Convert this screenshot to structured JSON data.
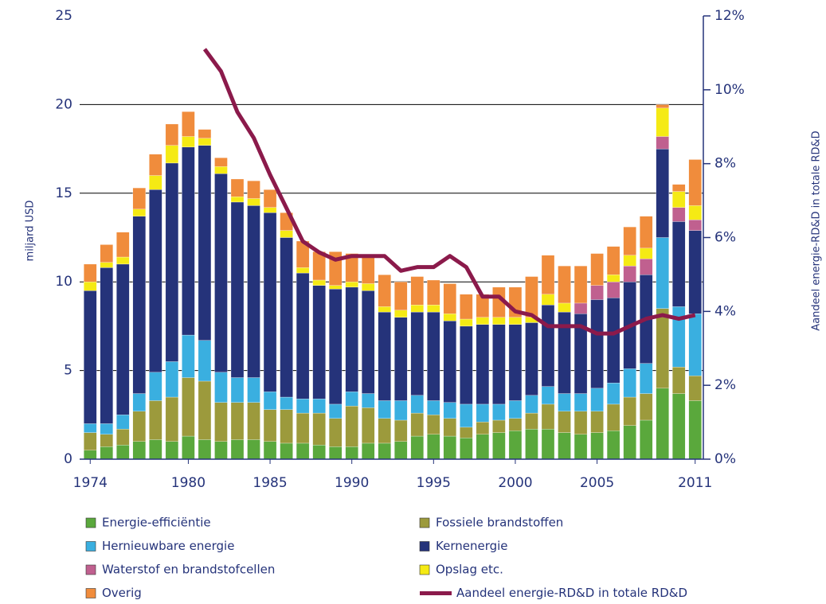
{
  "chart_data": {
    "type": "bar",
    "stacked": true,
    "ylabel": "miljard USD",
    "y2label": "Aandeel energie-RD&D in totale RD&D",
    "x": [
      1974,
      1975,
      1976,
      1977,
      1978,
      1979,
      1980,
      1981,
      1982,
      1983,
      1984,
      1985,
      1986,
      1987,
      1988,
      1989,
      1990,
      1991,
      1992,
      1993,
      1994,
      1995,
      1996,
      1997,
      1998,
      1999,
      2000,
      2001,
      2002,
      2003,
      2004,
      2005,
      2006,
      2007,
      2008,
      2009,
      2010,
      2011
    ],
    "xlim": [
      1973.5,
      2011.5
    ],
    "xticks": [
      1974,
      1980,
      1985,
      1990,
      1995,
      2000,
      2005,
      2011
    ],
    "ylim": [
      0,
      25
    ],
    "yticks": [
      0,
      5,
      10,
      15,
      20,
      25
    ],
    "y2lim": [
      0,
      12
    ],
    "y2ticks": [
      {
        "value": 0,
        "label": "0%"
      },
      {
        "value": 2,
        "label": "2%"
      },
      {
        "value": 4,
        "label": "4%"
      },
      {
        "value": 6,
        "label": "6%"
      },
      {
        "value": 8,
        "label": "8%"
      },
      {
        "value": 10,
        "label": "10%"
      },
      {
        "value": 12,
        "label": "12%"
      }
    ],
    "grid": true,
    "series": [
      {
        "name": "Energie-efficiëntie",
        "color": "#5aa83c",
        "values": [
          0.5,
          0.7,
          0.8,
          1.0,
          1.1,
          1.0,
          1.3,
          1.1,
          1.0,
          1.1,
          1.1,
          1.0,
          0.9,
          0.9,
          0.8,
          0.7,
          0.7,
          0.9,
          0.9,
          1.0,
          1.3,
          1.4,
          1.3,
          1.2,
          1.4,
          1.5,
          1.6,
          1.7,
          1.7,
          1.5,
          1.4,
          1.5,
          1.6,
          1.9,
          2.2,
          4.0,
          3.7,
          3.3
        ]
      },
      {
        "name": "Fossiele brandstoffen",
        "color": "#9c9a3c",
        "values": [
          1.0,
          0.7,
          0.9,
          1.7,
          2.2,
          2.5,
          3.3,
          3.3,
          2.2,
          2.1,
          2.1,
          1.8,
          1.9,
          1.7,
          1.8,
          1.6,
          2.3,
          2.0,
          1.4,
          1.2,
          1.3,
          1.1,
          1.0,
          0.6,
          0.7,
          0.7,
          0.7,
          0.9,
          1.4,
          1.2,
          1.3,
          1.2,
          1.5,
          1.6,
          1.5,
          4.5,
          1.5,
          1.4
        ]
      },
      {
        "name": "Hernieuwbare energie",
        "color": "#3aafe0",
        "values": [
          0.5,
          0.6,
          0.8,
          1.0,
          1.6,
          2.0,
          2.4,
          2.3,
          1.7,
          1.4,
          1.4,
          1.0,
          0.7,
          0.8,
          0.8,
          0.8,
          0.8,
          0.8,
          1.0,
          1.1,
          1.0,
          0.8,
          0.9,
          1.3,
          1.0,
          0.9,
          1.0,
          1.0,
          1.0,
          1.0,
          1.0,
          1.3,
          1.2,
          1.6,
          1.7,
          4.0,
          3.4,
          3.5
        ]
      },
      {
        "name": "Kernenergie",
        "color": "#25337a",
        "values": [
          7.5,
          8.8,
          8.5,
          10.0,
          10.3,
          11.2,
          10.6,
          11.0,
          11.2,
          9.9,
          9.7,
          10.1,
          9.0,
          7.1,
          6.4,
          6.5,
          5.9,
          5.8,
          5.0,
          4.7,
          4.7,
          5.0,
          4.6,
          4.4,
          4.5,
          4.5,
          4.3,
          4.1,
          4.6,
          4.6,
          4.5,
          5.0,
          4.8,
          4.9,
          5.0,
          5.0,
          4.8,
          4.7
        ]
      },
      {
        "name": "Waterstof en brandstofcellen",
        "color": "#c0608f",
        "values": [
          0,
          0,
          0,
          0,
          0,
          0,
          0,
          0,
          0,
          0,
          0,
          0,
          0,
          0,
          0,
          0,
          0,
          0,
          0,
          0,
          0,
          0,
          0,
          0,
          0,
          0,
          0,
          0,
          0,
          0,
          0.6,
          0.8,
          0.9,
          0.9,
          0.9,
          0.7,
          0.8,
          0.6
        ]
      },
      {
        "name": "Opslag etc.",
        "color": "#f5ea14",
        "values": [
          0.5,
          0.3,
          0.4,
          0.4,
          0.8,
          1.0,
          0.6,
          0.4,
          0.4,
          0.3,
          0.4,
          0.3,
          0.4,
          0.3,
          0.3,
          0.2,
          0.3,
          0.4,
          0.3,
          0.4,
          0.4,
          0.4,
          0.4,
          0.4,
          0.4,
          0.4,
          0.4,
          0.3,
          0.6,
          0.5,
          0,
          0,
          0.4,
          0.6,
          0.6,
          1.6,
          0.9,
          0.8
        ]
      },
      {
        "name": "Overig",
        "color": "#f08c3c",
        "values": [
          1.0,
          1.0,
          1.4,
          1.2,
          1.2,
          1.2,
          1.4,
          0.5,
          0.5,
          1.0,
          1.0,
          1.0,
          1.0,
          1.5,
          1.6,
          1.9,
          1.6,
          1.6,
          1.8,
          1.6,
          1.6,
          1.4,
          1.7,
          1.4,
          1.3,
          1.7,
          1.7,
          2.3,
          2.2,
          2.1,
          2.1,
          1.8,
          1.6,
          1.6,
          1.8,
          0.2,
          0.4,
          2.6
        ]
      },
      {
        "name": "Aandeel energie-RD&D in totale RD&D",
        "type": "line",
        "axis": "y2",
        "color": "#8b1a4b",
        "values": [
          null,
          null,
          null,
          null,
          null,
          null,
          null,
          11.1,
          10.5,
          9.4,
          8.7,
          7.7,
          6.8,
          5.9,
          5.6,
          5.4,
          5.5,
          5.5,
          5.5,
          5.1,
          5.2,
          5.2,
          5.5,
          5.2,
          4.4,
          4.4,
          4.0,
          3.9,
          3.6,
          3.6,
          3.6,
          3.4,
          3.4,
          3.6,
          3.8,
          3.9,
          3.8,
          3.9
        ]
      }
    ]
  }
}
